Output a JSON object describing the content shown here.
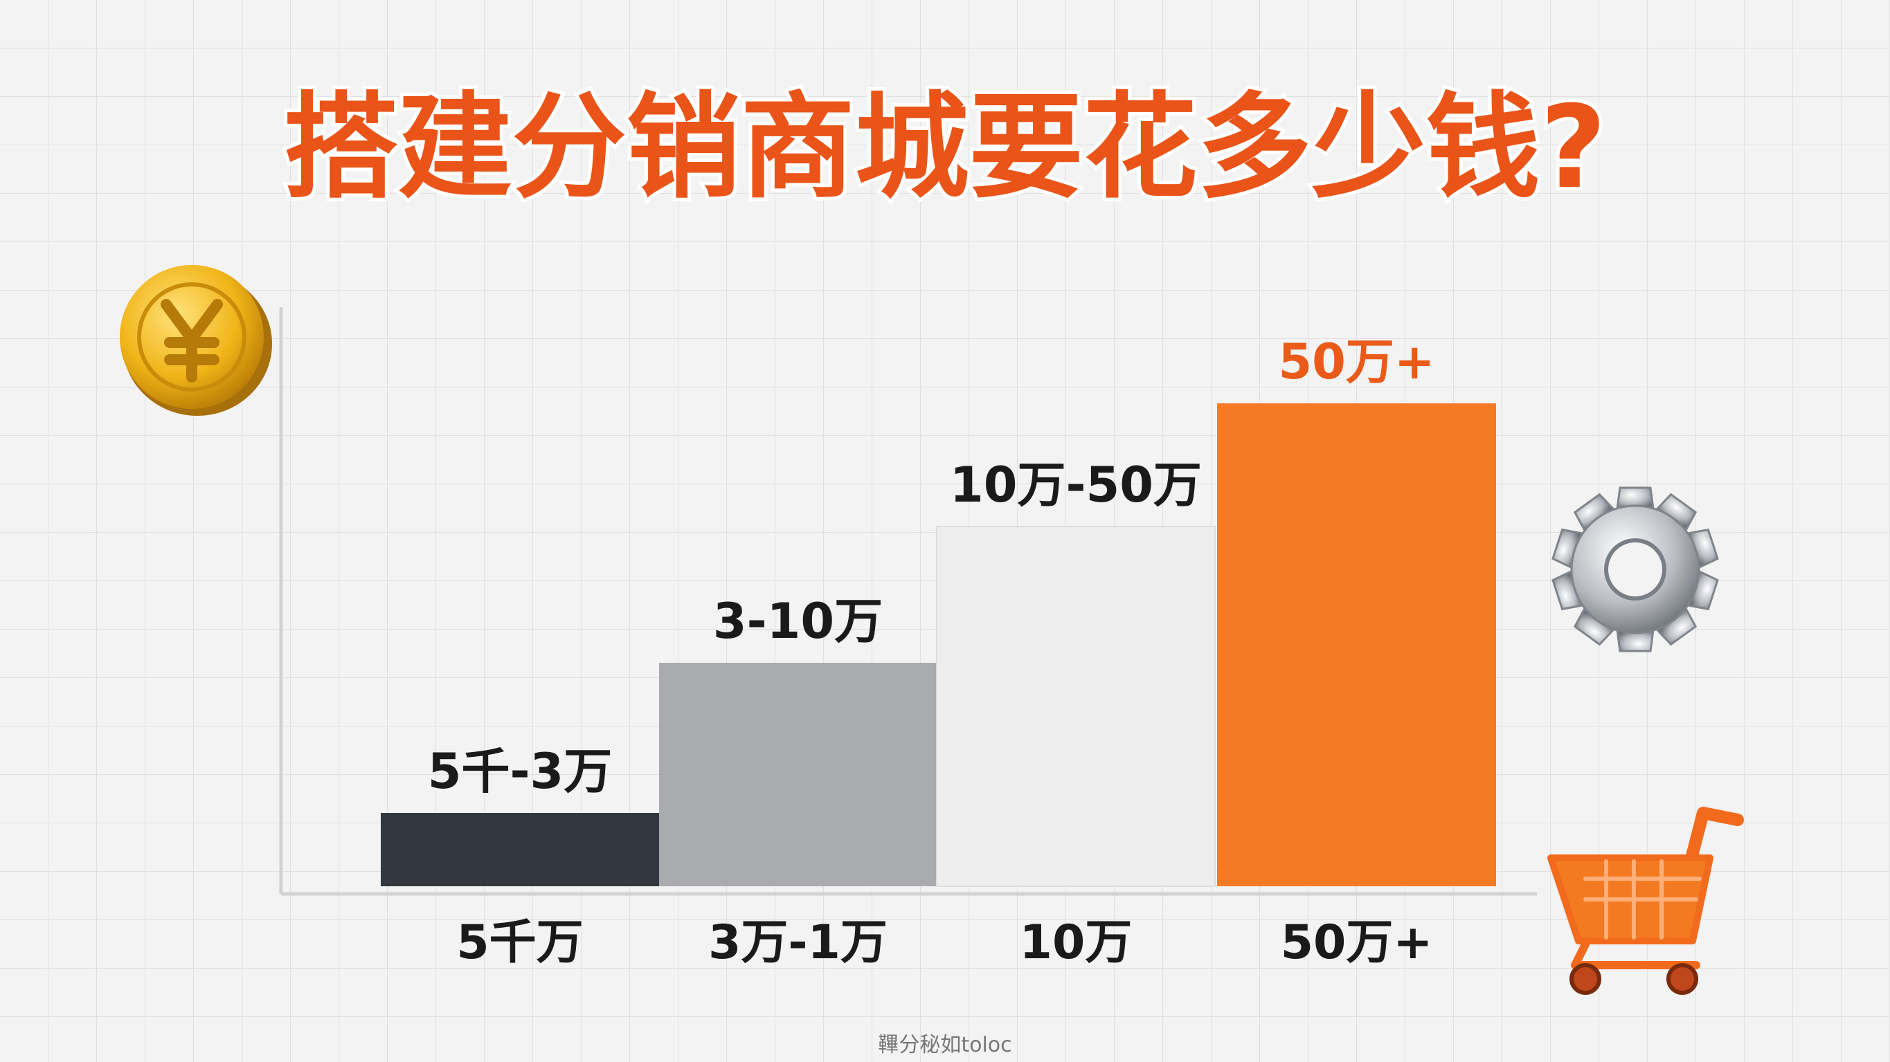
{
  "title": "搭建分销商城要花多少钱?",
  "bars": [
    {
      "label": "5千-3万",
      "category": "5千万"
    },
    {
      "label": "3-10万",
      "category": "3万-1万"
    },
    {
      "label": "10万-50万",
      "category": "10万"
    },
    {
      "label": "50万+",
      "category": "50万+"
    }
  ],
  "watermark": "鞸分秘如toloc"
}
